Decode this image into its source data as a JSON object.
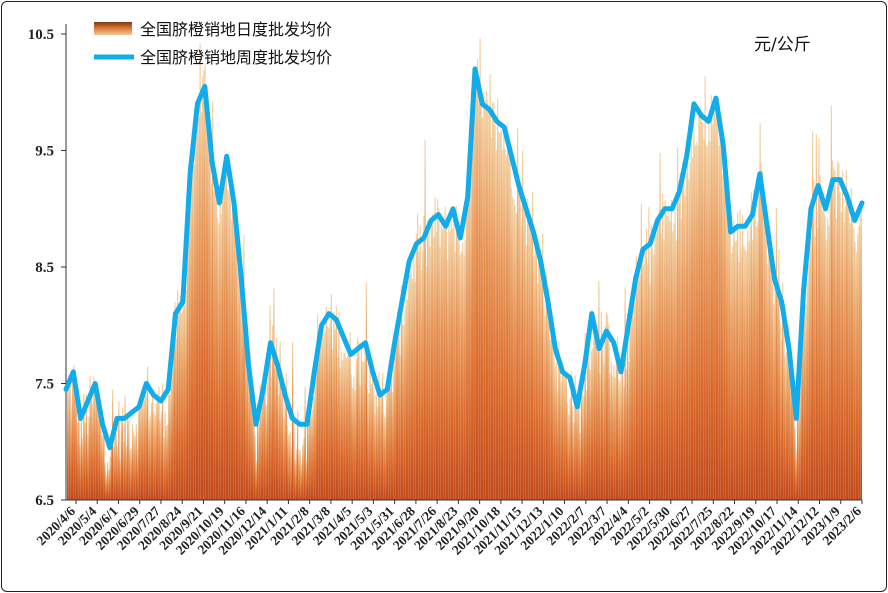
{
  "chart_data": {
    "type": "line",
    "unit_label": "元/公斤",
    "legend": [
      {
        "name": "全国脐橙销地日度批发均价",
        "style": "bar",
        "color": "#d9682a"
      },
      {
        "name": "全国脐橙销地周度批发均价",
        "style": "line",
        "color": "#12acea"
      }
    ],
    "ylim": [
      6.5,
      10.5
    ],
    "yticks": [
      "6.5",
      "7.5",
      "8.5",
      "9.5",
      "10.5"
    ],
    "x_tick_labels": [
      "2020/4/6",
      "2020/5/4",
      "2020/6/1",
      "2020/6/29",
      "2020/7/27",
      "2020/8/24",
      "2020/9/21",
      "2020/10/19",
      "2020/11/16",
      "2020/12/14",
      "2021/1/11",
      "2021/2/8",
      "2021/3/8",
      "2021/4/5",
      "2021/5/3",
      "2021/5/31",
      "2021/6/28",
      "2021/7/26",
      "2021/8/23",
      "2021/9/20",
      "2021/10/18",
      "2021/11/15",
      "2021/12/13",
      "2022/1/10",
      "2022/2/7",
      "2022/3/7",
      "2022/4/4",
      "2022/5/2",
      "2022/5/30",
      "2022/6/27",
      "2022/7/25",
      "2022/8/22",
      "2022/9/19",
      "2022/10/17",
      "2022/11/14",
      "2022/12/12",
      "2023/1/9",
      "2023/2/6"
    ],
    "series": [
      {
        "name": "全国脐橙销地周度批发均价",
        "values": [
          7.45,
          7.6,
          7.2,
          7.35,
          7.5,
          7.15,
          6.95,
          7.2,
          7.2,
          7.25,
          7.3,
          7.5,
          7.4,
          7.35,
          7.45,
          8.1,
          8.2,
          9.3,
          9.9,
          10.05,
          9.4,
          9.05,
          9.45,
          9.05,
          8.4,
          7.65,
          7.15,
          7.45,
          7.85,
          7.65,
          7.4,
          7.2,
          7.15,
          7.15,
          7.6,
          8.0,
          8.1,
          8.05,
          7.9,
          7.75,
          7.8,
          7.85,
          7.6,
          7.4,
          7.45,
          7.85,
          8.2,
          8.55,
          8.7,
          8.75,
          8.9,
          8.95,
          8.85,
          9.0,
          8.75,
          9.1,
          10.2,
          9.9,
          9.85,
          9.75,
          9.7,
          9.45,
          9.2,
          9.0,
          8.8,
          8.55,
          8.2,
          7.8,
          7.6,
          7.55,
          7.3,
          7.65,
          8.1,
          7.8,
          7.95,
          7.85,
          7.6,
          8.0,
          8.4,
          8.65,
          8.7,
          8.9,
          9.0,
          9.0,
          9.15,
          9.45,
          9.9,
          9.8,
          9.75,
          9.95,
          9.55,
          8.8,
          8.85,
          8.85,
          8.95,
          9.3,
          8.85,
          8.4,
          8.2,
          7.8,
          7.2,
          8.3,
          9.0,
          9.2,
          9.0,
          9.25,
          9.25,
          9.1,
          8.9,
          9.05
        ]
      }
    ],
    "daily_range_note": ""
  }
}
